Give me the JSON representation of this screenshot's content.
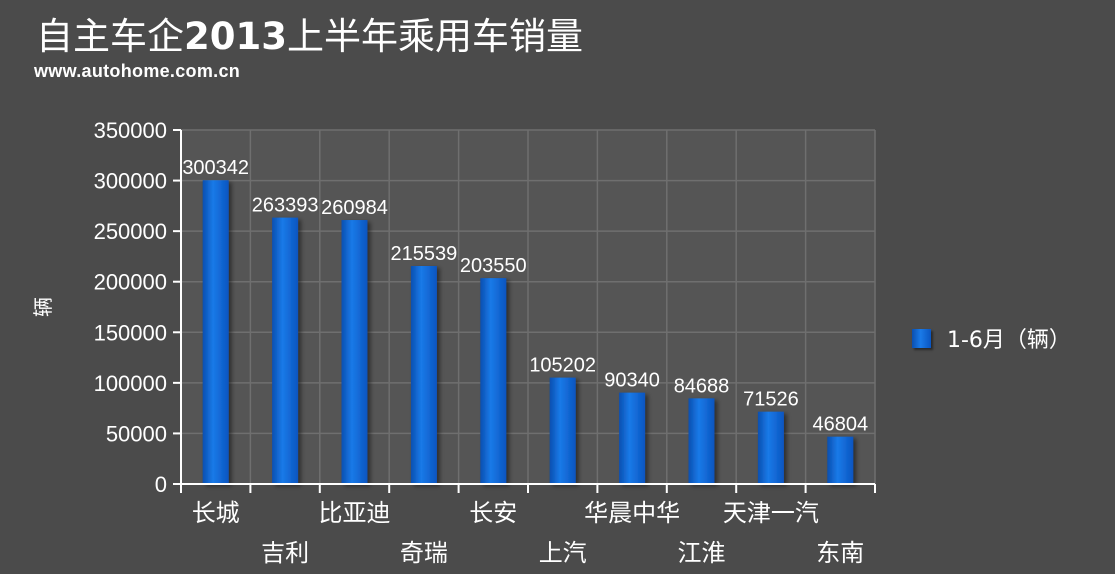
{
  "header": {
    "title_pre": "自主车企",
    "title_year": "2013",
    "title_post": "上半年乘用车销量",
    "site": "www.autohome.com.cn"
  },
  "legend": {
    "label": "1-6月（辆）"
  },
  "colors": {
    "background": "#4b4b4b",
    "plot_background": "#555555",
    "grid": "#6f6f6f",
    "bar": "#1a73e0",
    "bar_dark": "#0b52b8",
    "text": "#ffffff"
  },
  "chart_data": {
    "type": "bar",
    "title": "自主车企2013上半年乘用车销量",
    "xlabel": "",
    "ylabel": "辆",
    "ylim": [
      0,
      350000
    ],
    "ytick_step": 50000,
    "yticks": [
      "0",
      "50000",
      "100000",
      "150000",
      "200000",
      "250000",
      "300000",
      "350000"
    ],
    "categories": [
      "长城",
      "吉利",
      "比亚迪",
      "奇瑞",
      "长安",
      "上汽",
      "华晨中华",
      "江淮",
      "天津一汽",
      "东南"
    ],
    "series": [
      {
        "name": "1-6月（辆）",
        "values": [
          300342,
          263393,
          260984,
          215539,
          203550,
          105202,
          90340,
          84688,
          71526,
          46804
        ]
      }
    ],
    "grid": true,
    "legend_position": "right"
  }
}
